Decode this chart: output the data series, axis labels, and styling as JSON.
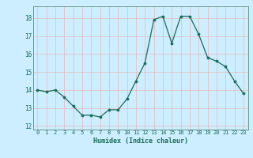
{
  "x": [
    0,
    1,
    2,
    3,
    4,
    5,
    6,
    7,
    8,
    9,
    10,
    11,
    12,
    13,
    14,
    15,
    16,
    17,
    18,
    19,
    20,
    21,
    22,
    23
  ],
  "y": [
    14.0,
    13.9,
    14.0,
    13.6,
    13.1,
    12.6,
    12.6,
    12.5,
    12.9,
    12.9,
    13.5,
    14.5,
    15.5,
    17.9,
    18.1,
    16.6,
    18.1,
    18.1,
    17.1,
    15.8,
    15.6,
    15.3,
    14.5,
    13.8
  ],
  "xlabel": "Humidex (Indice chaleur)",
  "bg_color": "#cceeff",
  "grid_color": "#e8b8b8",
  "line_color": "#1a6b5a",
  "marker_color": "#1a6b5a",
  "tick_label_color": "#1a6b5a",
  "axis_color": "#5a8a7a",
  "xlabel_color": "#1a6b5a",
  "ylim": [
    11.8,
    18.65
  ],
  "yticks": [
    12,
    13,
    14,
    15,
    16,
    17,
    18
  ],
  "xticks": [
    0,
    1,
    2,
    3,
    4,
    5,
    6,
    7,
    8,
    9,
    10,
    11,
    12,
    13,
    14,
    15,
    16,
    17,
    18,
    19,
    20,
    21,
    22,
    23
  ]
}
